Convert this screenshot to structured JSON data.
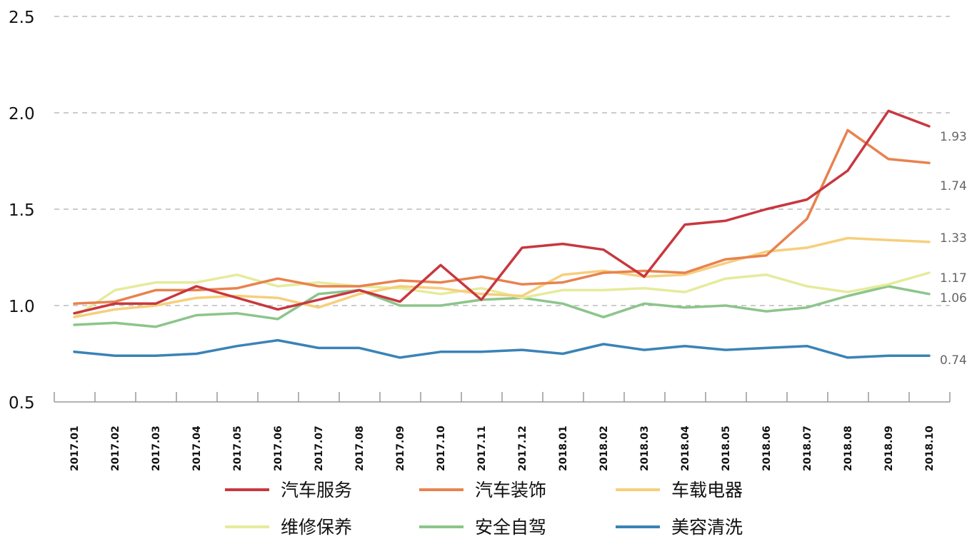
{
  "chart_data": {
    "type": "line",
    "title": "",
    "xlabel": "",
    "ylabel": "",
    "ylim": [
      0.5,
      2.5
    ],
    "yticks": [
      "0.5",
      "1.0",
      "1.5",
      "2.0",
      "2.5"
    ],
    "grid": "horizontal dashed",
    "legend_position": "bottom",
    "categories": [
      "2017.01",
      "2017.02",
      "2017.03",
      "2017.04",
      "2017.05",
      "2017.06",
      "2017.07",
      "2017.08",
      "2017.09",
      "2017.10",
      "2017.11",
      "2017.12",
      "2018.01",
      "2018.02",
      "2018.03",
      "2018.04",
      "2018.05",
      "2018.06",
      "2018.07",
      "2018.08",
      "2018.09",
      "2018.10"
    ],
    "series": [
      {
        "name": "汽车服务",
        "color": "#c8373f",
        "values": [
          0.96,
          1.01,
          1.01,
          1.1,
          1.04,
          0.98,
          1.03,
          1.08,
          1.02,
          1.21,
          1.03,
          1.3,
          1.32,
          1.29,
          1.15,
          1.42,
          1.44,
          1.5,
          1.55,
          1.7,
          2.01,
          1.93
        ]
      },
      {
        "name": "汽车装饰",
        "color": "#e8824f",
        "values": [
          1.01,
          1.02,
          1.08,
          1.08,
          1.09,
          1.14,
          1.1,
          1.1,
          1.13,
          1.12,
          1.15,
          1.11,
          1.12,
          1.17,
          1.18,
          1.17,
          1.24,
          1.26,
          1.45,
          1.91,
          1.76,
          1.74
        ]
      },
      {
        "name": "车载电器",
        "color": "#f6cf7c",
        "values": [
          0.94,
          0.98,
          1.0,
          1.04,
          1.05,
          1.04,
          0.99,
          1.06,
          1.1,
          1.09,
          1.06,
          1.05,
          1.16,
          1.18,
          1.15,
          1.16,
          1.22,
          1.28,
          1.3,
          1.35,
          1.34,
          1.33
        ]
      },
      {
        "name": "维修保养",
        "color": "#e5eb9b",
        "values": [
          0.94,
          1.08,
          1.12,
          1.12,
          1.16,
          1.1,
          1.12,
          1.1,
          1.09,
          1.06,
          1.09,
          1.04,
          1.08,
          1.08,
          1.09,
          1.07,
          1.14,
          1.16,
          1.1,
          1.07,
          1.11,
          1.17
        ]
      },
      {
        "name": "安全自驾",
        "color": "#8cc58a",
        "values": [
          0.9,
          0.91,
          0.89,
          0.95,
          0.96,
          0.93,
          1.06,
          1.08,
          1.0,
          1.0,
          1.03,
          1.04,
          1.01,
          0.94,
          1.01,
          0.99,
          1.0,
          0.97,
          0.99,
          1.05,
          1.1,
          1.06
        ]
      },
      {
        "name": "美容清洗",
        "color": "#3a83b6",
        "values": [
          0.76,
          0.74,
          0.74,
          0.75,
          0.79,
          0.82,
          0.78,
          0.78,
          0.73,
          0.76,
          0.76,
          0.77,
          0.75,
          0.8,
          0.77,
          0.79,
          0.77,
          0.78,
          0.79,
          0.73,
          0.74,
          0.74
        ]
      }
    ],
    "end_labels": [
      "1.93",
      "1.74",
      "1.33",
      "1.17",
      "1.06",
      "0.74"
    ]
  }
}
